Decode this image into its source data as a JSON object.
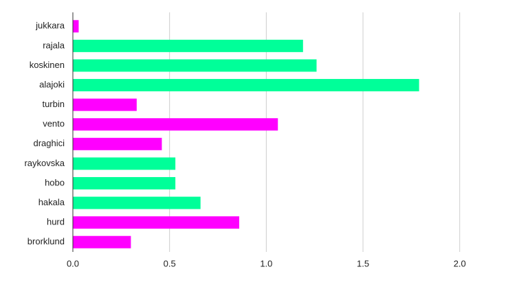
{
  "chart_data": {
    "type": "bar",
    "orientation": "horizontal",
    "categories": [
      "jukkara",
      "rajala",
      "koskinen",
      "alajoki",
      "turbin",
      "vento",
      "draghici",
      "raykovska",
      "hobo",
      "hakala",
      "hurd",
      "brorklund"
    ],
    "values": [
      0.03,
      1.19,
      1.26,
      1.79,
      0.33,
      1.06,
      0.46,
      0.53,
      0.53,
      0.66,
      0.86,
      0.3
    ],
    "colors": [
      "#ff00ff",
      "#00ff99",
      "#00ff99",
      "#00ff99",
      "#ff00ff",
      "#ff00ff",
      "#ff00ff",
      "#00ff99",
      "#00ff99",
      "#00ff99",
      "#ff00ff",
      "#ff00ff"
    ],
    "xlim": [
      0,
      2.2
    ],
    "xticks": [
      {
        "value": 0,
        "label": "0.0"
      },
      0.5,
      {
        "value": 1,
        "label": "1.0"
      },
      1.5,
      {
        "value": 2,
        "label": "2.0"
      }
    ],
    "grid": true
  }
}
